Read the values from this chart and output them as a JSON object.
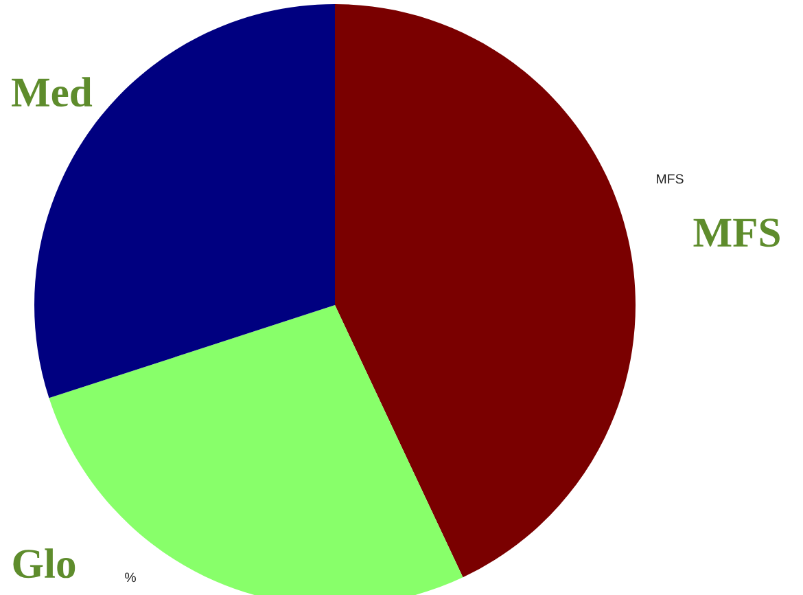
{
  "chart_data": {
    "type": "pie",
    "categories": [
      "MFS",
      "Glo",
      "Med"
    ],
    "values": [
      43,
      27,
      30
    ],
    "colors": [
      "#7a0000",
      "#88ff6a",
      "#000080"
    ],
    "annotations": [
      "MFS",
      "%"
    ]
  }
}
